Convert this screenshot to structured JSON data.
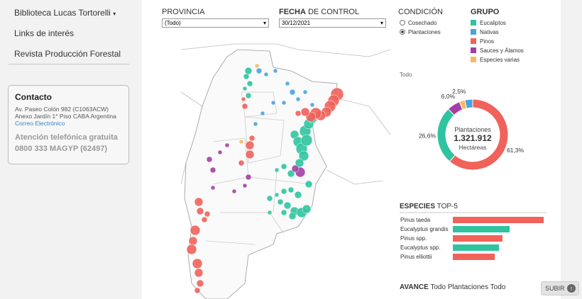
{
  "sidebar": {
    "links": [
      "Biblioteca Lucas Tortorelli",
      "Links de interés",
      "Revista Producción Forestal"
    ],
    "contact": {
      "title": "Contacto",
      "lines": [
        "Av. Paseo Colón 982 (C1063ACW)",
        "Anexo Jardín 1° Piso CABA Argentina"
      ],
      "email": "Correo Electrónico",
      "phone_title": "Atención telefónica gratuita",
      "phone": "0800 333 MAGYP (62497)"
    }
  },
  "filters": {
    "provincia": {
      "label": "PROVINCIA",
      "value": "(Todo)"
    },
    "fecha": {
      "label_bold": "FECHA",
      "label_rest": "DE CONTROL",
      "value": "30/12/2021"
    },
    "condicion": {
      "label": "CONDICIÓN",
      "options": [
        "Cosechado",
        "Plantaciones"
      ],
      "selected": 1
    }
  },
  "grupo": {
    "title": "GRUPO",
    "items": [
      {
        "name": "Eucaliptos",
        "color": "#2ec4a0"
      },
      {
        "name": "Nativas",
        "color": "#4aa3df"
      },
      {
        "name": "Pinos",
        "color": "#f0625a"
      },
      {
        "name": "Sauces y Álamos",
        "color": "#a43fa3"
      },
      {
        "name": "Especies varias",
        "color": "#f7b862"
      }
    ]
  },
  "donut": {
    "filter_label": "Todo",
    "center_title": "Plantaciones",
    "center_value": "1.321.912",
    "center_unit": "Hectáreas",
    "segments": [
      {
        "value": 61.3,
        "label": "61,3%",
        "color": "#f0625a"
      },
      {
        "value": 26.6,
        "label": "26,6%",
        "color": "#2ec4a0"
      },
      {
        "value": 6.0,
        "label": "6,0%",
        "color": "#a43fa3"
      },
      {
        "value": 2.5,
        "label": "2,5%",
        "color": "#f7b862"
      },
      {
        "value": 3.6,
        "color": "#4aa3df"
      }
    ]
  },
  "top5": {
    "title_bold": "ESPECIES",
    "title_rest": "TOP-5",
    "categories": [
      "Pinus taeda",
      "Eucalyptus grandis",
      "Pinus spp.",
      "Eucalyptus spp.",
      "Pinus elliottii"
    ],
    "values": [
      520000,
      325000,
      284000,
      264000,
      240000
    ],
    "colors": [
      "#f0625a",
      "#2ec4a0",
      "#f0625a",
      "#2ec4a0",
      "#f0625a"
    ]
  },
  "avance": {
    "bold": "AVANCE",
    "rest": "Todo Plantaciones Todo"
  },
  "subir": "SUBIR"
}
